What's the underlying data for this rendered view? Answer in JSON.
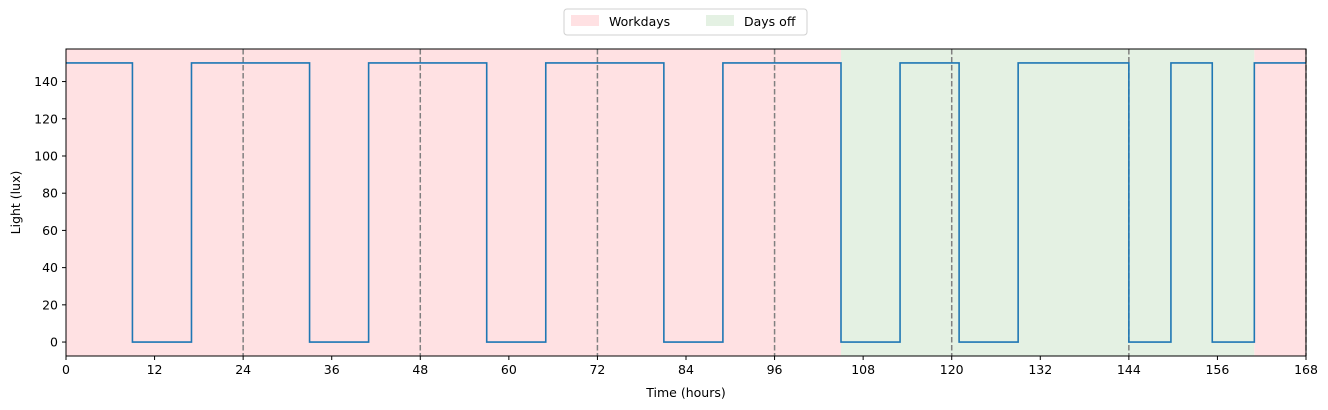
{
  "chart_data": {
    "type": "line",
    "xlabel": "Time (hours)",
    "ylabel": "Light (lux)",
    "xlim": [
      0,
      168
    ],
    "ylim": [
      -7.5,
      157.5
    ],
    "xticks": [
      0,
      12,
      24,
      36,
      48,
      60,
      72,
      84,
      96,
      108,
      120,
      132,
      144,
      156,
      168
    ],
    "yticks": [
      0,
      20,
      40,
      60,
      80,
      100,
      120,
      140
    ],
    "grid": false,
    "legend_position": "top-center",
    "legend": [
      {
        "name": "Workdays",
        "color": "#ffe1e3"
      },
      {
        "name": "Days off",
        "color": "#e4f1e3"
      }
    ],
    "shaded_regions": [
      {
        "name": "Workdays",
        "start": 0,
        "end": 105,
        "color": "#ffe1e3"
      },
      {
        "name": "Days off",
        "start": 105,
        "end": 161,
        "color": "#e4f1e3"
      },
      {
        "name": "Workdays",
        "start": 161,
        "end": 168,
        "color": "#ffe1e3"
      }
    ],
    "day_boundaries": [
      24,
      48,
      72,
      96,
      120,
      144,
      168
    ],
    "series": [
      {
        "color": "#1f77b4",
        "step": true,
        "points": [
          [
            0,
            150
          ],
          [
            9,
            150
          ],
          [
            9,
            0
          ],
          [
            17,
            0
          ],
          [
            17,
            150
          ],
          [
            33,
            150
          ],
          [
            33,
            0
          ],
          [
            41,
            0
          ],
          [
            41,
            150
          ],
          [
            57,
            150
          ],
          [
            57,
            0
          ],
          [
            65,
            0
          ],
          [
            65,
            150
          ],
          [
            81,
            150
          ],
          [
            81,
            0
          ],
          [
            89,
            0
          ],
          [
            89,
            150
          ],
          [
            105,
            150
          ],
          [
            105,
            0
          ],
          [
            113,
            0
          ],
          [
            113,
            150
          ],
          [
            121,
            150
          ],
          [
            121,
            0
          ],
          [
            129,
            0
          ],
          [
            129,
            150
          ],
          [
            144,
            150
          ],
          [
            144,
            0
          ],
          [
            149.7,
            0
          ],
          [
            149.7,
            150
          ],
          [
            155.3,
            150
          ],
          [
            155.3,
            0
          ],
          [
            161,
            0
          ],
          [
            161,
            150
          ],
          [
            168,
            150
          ]
        ]
      }
    ]
  }
}
